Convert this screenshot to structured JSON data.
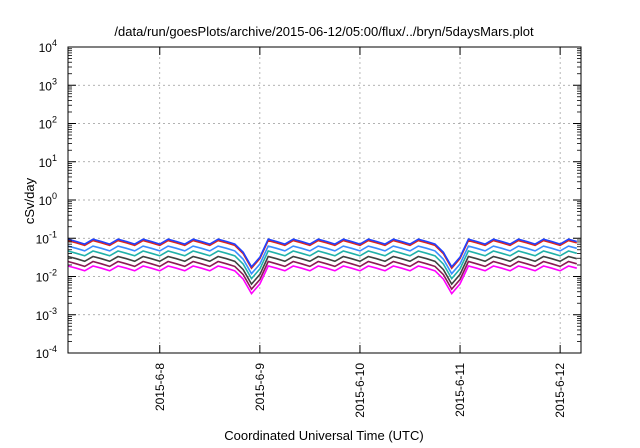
{
  "chart_data": {
    "type": "line",
    "title": "/data/run/goesPlots/archive/2015-06-12/05:00/flux/../bryn/5daysMars.plot",
    "xlabel": "Coordinated Universal Time (UTC)",
    "ylabel": "cSv/day",
    "x_range": [
      "2015-06-07 02:00",
      "2015-06-12 05:00"
    ],
    "x_ticks": [
      "2015-6-8",
      "2015-6-9",
      "2015-6-10",
      "2015-6-11",
      "2015-6-12"
    ],
    "y_scale": "log",
    "ylim": [
      0.0001,
      10000
    ],
    "y_ticks": [
      {
        "base": "10",
        "exp": "-4"
      },
      {
        "base": "10",
        "exp": "-3"
      },
      {
        "base": "10",
        "exp": "-2"
      },
      {
        "base": "10",
        "exp": "-1"
      },
      {
        "base": "10",
        "exp": "0"
      },
      {
        "base": "10",
        "exp": "1"
      },
      {
        "base": "10",
        "exp": "2"
      },
      {
        "base": "10",
        "exp": "3"
      },
      {
        "base": "10",
        "exp": "4"
      }
    ],
    "grid": true,
    "colors": [
      "#ff00ff",
      "#8b1a55",
      "#404040",
      "#20b2aa",
      "#3a8cff",
      "#e0251b",
      "#2040ff"
    ],
    "baseline_levels": [
      0.013,
      0.017,
      0.023,
      0.032,
      0.043,
      0.06,
      0.065
    ],
    "spikes_at": [
      "2015-06-08 22:00",
      "2015-06-10 22:00"
    ]
  }
}
